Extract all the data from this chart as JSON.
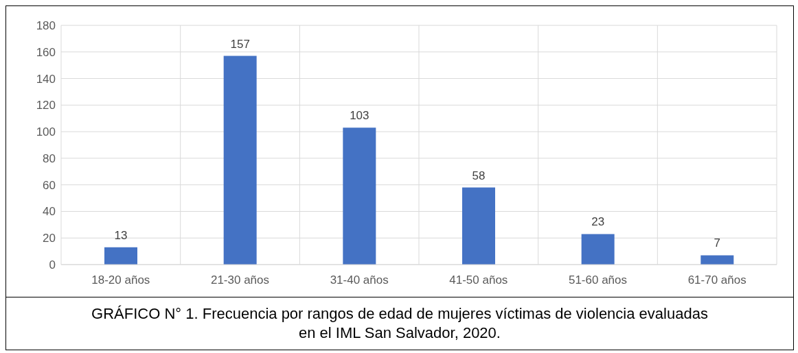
{
  "chart_data": {
    "type": "bar",
    "categories": [
      "18-20 años",
      "21-30 años",
      "31-40 años",
      "41-50 años",
      "51-60 años",
      "61-70 años"
    ],
    "values": [
      13,
      157,
      103,
      58,
      23,
      7
    ],
    "color": "#4472c4",
    "ylim": [
      0,
      180
    ],
    "yticks": [
      0,
      20,
      40,
      60,
      80,
      100,
      120,
      140,
      160,
      180
    ],
    "grid": true,
    "data_labels": true,
    "annotations": [
      "GRÁFICO N° 1.  Frecuencia por rangos de edad de mujeres víctimas de violencia evaluadas en el IML San Salvador, 2020."
    ]
  }
}
